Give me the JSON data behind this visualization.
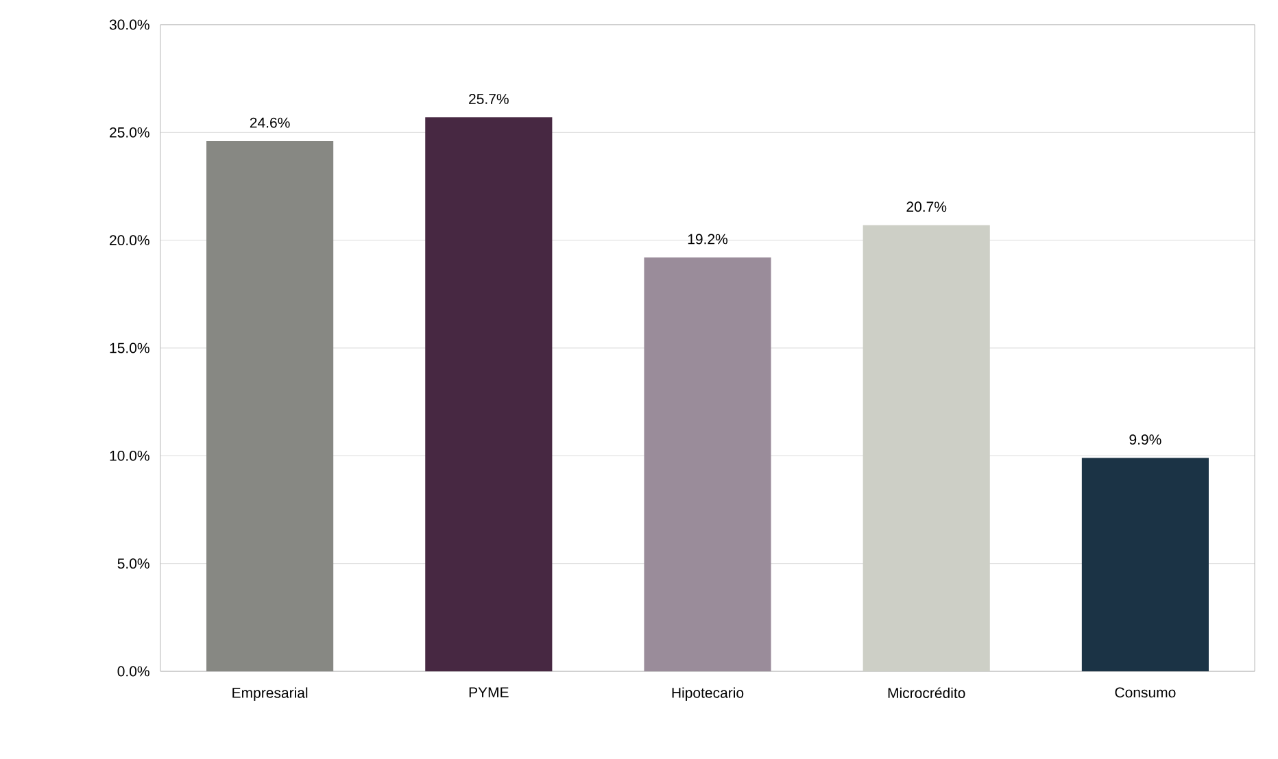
{
  "chart_data": {
    "type": "bar",
    "categories": [
      "Empresarial",
      "PYME",
      "Hipotecario",
      "Microcrédito",
      "Consumo"
    ],
    "values": [
      24.6,
      25.7,
      19.2,
      20.7,
      9.9
    ],
    "value_labels": [
      "24.6%",
      "25.7%",
      "19.2%",
      "20.7%",
      "9.9%"
    ],
    "colors": [
      "#878883",
      "#472842",
      "#9a8c9a",
      "#cdcfc6",
      "#1b3345"
    ],
    "ylim": [
      0,
      30
    ],
    "yticks": [
      {
        "value": 0,
        "label": "0.0%"
      },
      {
        "value": 5,
        "label": "5.0%"
      },
      {
        "value": 10,
        "label": "10.0%"
      },
      {
        "value": 15,
        "label": "15.0%"
      },
      {
        "value": 20,
        "label": "20.0%"
      },
      {
        "value": 25,
        "label": "25.0%"
      },
      {
        "value": 30,
        "label": "30.0%"
      }
    ],
    "grid": "y"
  }
}
